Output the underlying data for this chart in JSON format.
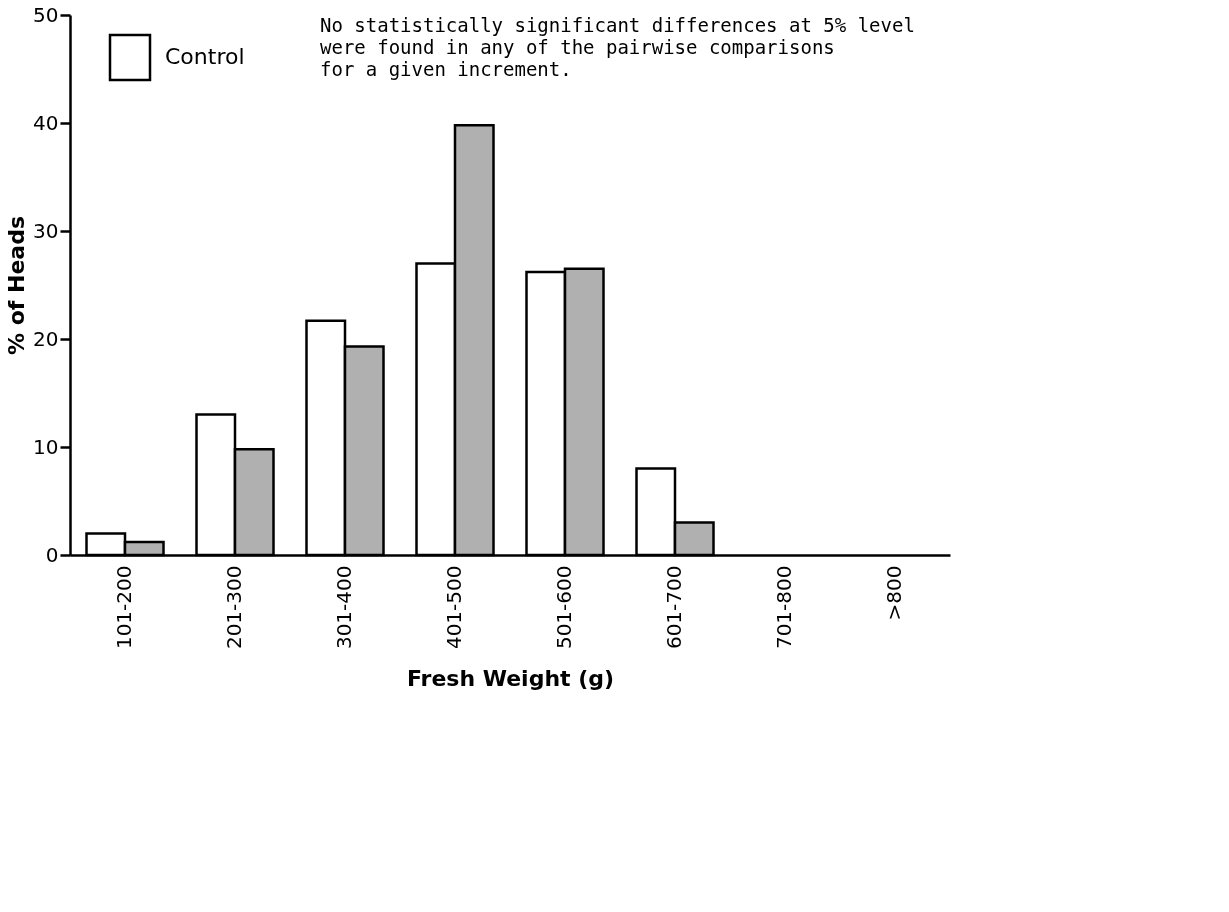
{
  "chart_data": {
    "type": "bar",
    "xlabel": "Fresh Weight (g)",
    "ylabel": "% of Heads",
    "categories": [
      "101-200",
      "201-300",
      "301-400",
      "401-500",
      "501-600",
      "601-700",
      "701-800",
      ">800"
    ],
    "series": [
      {
        "name": "Control",
        "color": "#ffffff",
        "values": [
          2,
          13,
          21.7,
          27,
          26.2,
          8,
          null,
          null
        ]
      },
      {
        "color": "#b0b0b0",
        "values": [
          1.2,
          9.8,
          19.3,
          39.8,
          26.5,
          3,
          null,
          null
        ]
      }
    ],
    "ylim": [
      0,
      50
    ],
    "yticks": [
      0,
      10,
      20,
      30,
      40,
      50
    ],
    "grid": false,
    "legend": "top left",
    "annotations": [
      "No statistically significant differences at 5% level\nwere found in any of the pairwise comparisons\nfor a given increment."
    ]
  }
}
